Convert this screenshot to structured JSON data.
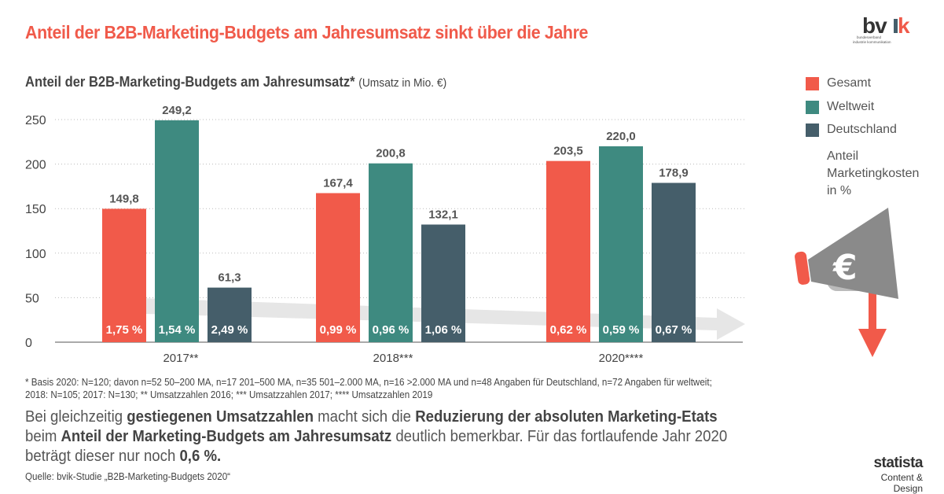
{
  "header": {
    "title": "Anteil der B2B-Marketing-Budgets am Jahresumsatz sinkt über die Jahre",
    "logo": "bvik",
    "logo_sub1": "bundesverband",
    "logo_sub2": "industrie kommunikation"
  },
  "chart_data": {
    "type": "bar",
    "title": "Anteil der B2B-Marketing-Budgets am Jahresumsatz*",
    "title_unit": "(Umsatz in Mio. €)",
    "categories": [
      "2017**",
      "2018***",
      "2020****"
    ],
    "ylim": [
      0,
      250
    ],
    "yticks": [
      "0",
      "50",
      "100",
      "150",
      "200",
      "250"
    ],
    "grid": true,
    "legend_position": "right",
    "series": [
      {
        "name": "Gesamt",
        "color": "#f15a4a",
        "values": [
          149.8,
          167.4,
          203.5
        ],
        "labels": [
          "149,8",
          "167,4",
          "203,5"
        ],
        "percent": [
          "1,75 %",
          "0,99 %",
          "0,62 %"
        ]
      },
      {
        "name": "Weltweit",
        "color": "#3e8a80",
        "values": [
          249.2,
          200.8,
          220.0
        ],
        "labels": [
          "249,2",
          "200,8",
          "220,0"
        ],
        "percent": [
          "1,54 %",
          "0,96 %",
          "0,59 %"
        ]
      },
      {
        "name": "Deutschland",
        "color": "#455e6a",
        "values": [
          61.3,
          132.1,
          178.9
        ],
        "labels": [
          "61,3",
          "132,1",
          "178,9"
        ],
        "percent": [
          "2,49 %",
          "1,06 %",
          "0,67 %"
        ]
      }
    ],
    "legend_note": [
      "Anteil",
      "Marketingkosten",
      "in %"
    ]
  },
  "footnote": [
    "* Basis 2020: N=120; davon n=52 50–200 MA, n=17 201–500 MA, n=35 501–2.000 MA, n=16 >2.000 MA und n=48 Angaben für Deutschland, n=72 Angaben für weltweit;",
    "2018: N=105; 2017: N=130; ** Umsatzzahlen 2016; *** Umsatzzahlen 2017; **** Umsatzzahlen 2019"
  ],
  "summary": {
    "p1": "Bei gleichzeitig ",
    "b1": "gestiegenen Umsatzzahlen",
    "p2": " macht sich die ",
    "b2": "Reduzierung der absoluten Marketing-Etats",
    "p3": " beim ",
    "b3": "Anteil der Marketing-Budgets am Jahresumsatz",
    "p4": " deutlich bemerkbar. Für das fortlaufende Jahr 2020 beträgt dieser nur noch ",
    "b4": "0,6 %."
  },
  "source": "Quelle: bvik-Studie „B2B-Marketing-Budgets 2020“",
  "branding": {
    "name": "statista",
    "sub": "Content & Design"
  },
  "icons": {
    "megaphone": "megaphone-euro-icon",
    "arrow": "arrow-down-icon"
  }
}
